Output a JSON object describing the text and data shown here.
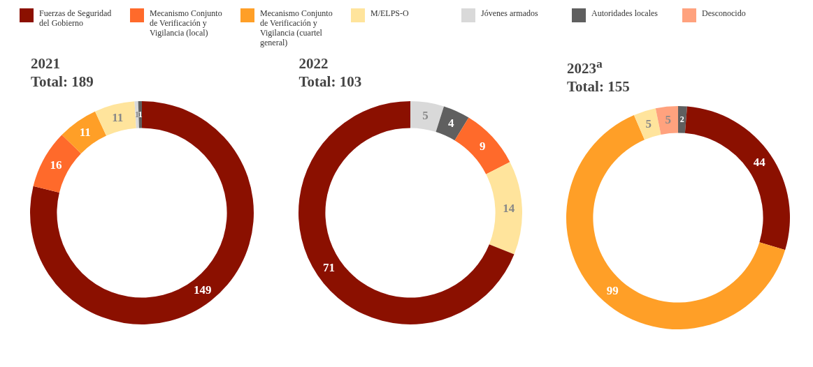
{
  "chart_data": [
    {
      "type": "donut",
      "title": "2021",
      "subtitle": "Total: 189",
      "legend": "top",
      "data_labels": true,
      "categories": [
        "Fuerzas de Seguridad del Gobierno",
        "Mecanismo Conjunto de Verificación y Vigilancia (local)",
        "Mecanismo Conjunto de Verificación y Vigilancia (cuartel general)",
        "M/ELPS-O",
        "Jóvenes armados",
        "Autoridades locales"
      ],
      "values": [
        149,
        16,
        11,
        11,
        1,
        1
      ],
      "colors": [
        "#8b1000",
        "#ff6a2b",
        "#ff9f27",
        "#ffe49c",
        "#d9d9d9",
        "#5f5f5f"
      ]
    },
    {
      "type": "donut",
      "title": "2022",
      "subtitle": "Total: 103",
      "data_labels": true,
      "categories": [
        null,
        null,
        null,
        null,
        null
      ],
      "values": [
        5,
        4,
        9,
        14,
        71
      ],
      "colors": [
        "#d9d9d9",
        "#5f5f5f",
        "#ff6a2b",
        "#ffe49c",
        "#8b1000"
      ]
    },
    {
      "type": "donut",
      "title": "2023$^{a}$",
      "subtitle": "Total: 155",
      "data_labels": true,
      "categories": [
        null,
        null,
        null,
        null,
        "Desconocido"
      ],
      "values": [
        2,
        44,
        99,
        5,
        5
      ],
      "colors": [
        "#5f5f5f",
        "#8b1000",
        "#ff9f27",
        "#ffe49c",
        "#ffa27e"
      ]
    }
  ]
}
